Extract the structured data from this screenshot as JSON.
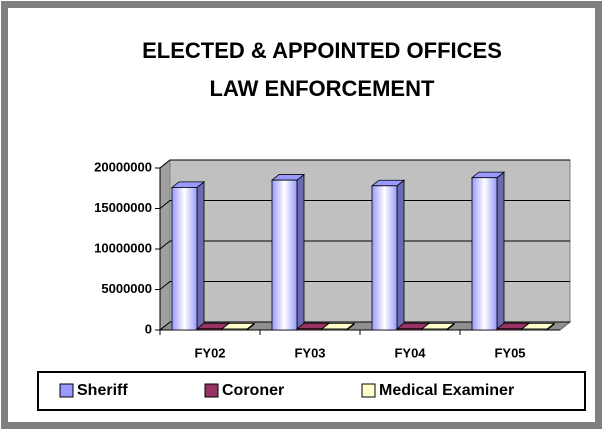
{
  "chart_data": {
    "type": "bar3d",
    "title": [
      "ELECTED & APPOINTED OFFICES",
      "LAW ENFORCEMENT"
    ],
    "categories": [
      "FY02",
      "FY03",
      "FY04",
      "FY05"
    ],
    "series": [
      {
        "name": "Sheriff",
        "color": "#9999ff",
        "values": [
          17600000,
          18500000,
          17800000,
          18800000
        ]
      },
      {
        "name": "Coroner",
        "color": "#993366",
        "values": [
          150000,
          150000,
          150000,
          150000
        ]
      },
      {
        "name": "Medical Examiner",
        "color": "#ffffcc",
        "values": [
          100000,
          100000,
          100000,
          100000
        ]
      }
    ],
    "ylim": [
      0,
      20000000
    ],
    "yticks": [
      0,
      5000000,
      10000000,
      15000000,
      20000000
    ],
    "grid": true,
    "legend": "bottom"
  }
}
